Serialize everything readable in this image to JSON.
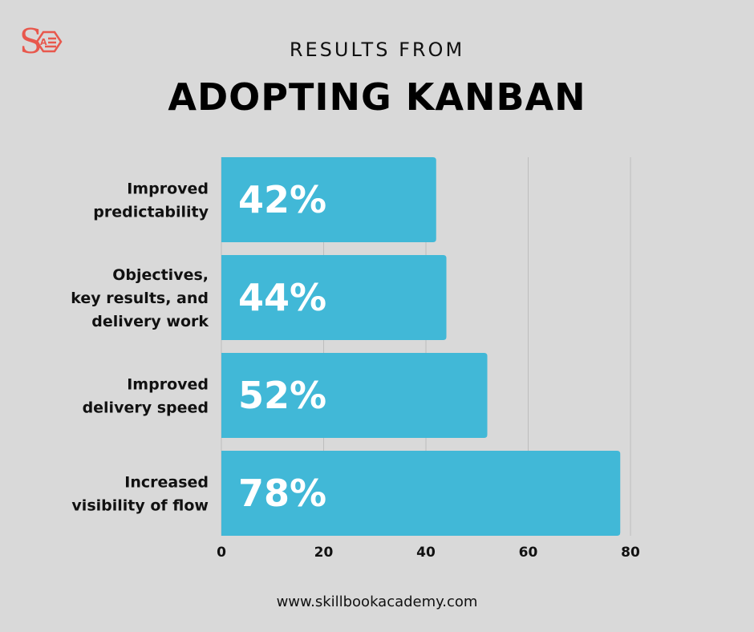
{
  "header": {
    "subtitle": "RESULTS FROM",
    "title": "ADOPTING KANBAN"
  },
  "logo": {
    "letter": "S",
    "icon": "book-document-icon",
    "color": "#e8584d"
  },
  "footer": {
    "url": "www.skillbookacademy.com"
  },
  "colors": {
    "bar": "#41b8d7",
    "background": "#d9d9d9",
    "grid": "#bdbdbd"
  },
  "chart_data": {
    "type": "bar",
    "orientation": "horizontal",
    "categories": [
      [
        "Improved",
        "predictability"
      ],
      [
        "Objectives,",
        "key results, and",
        "delivery work"
      ],
      [
        "Improved",
        "delivery speed"
      ],
      [
        "Increased",
        "visibility of flow"
      ]
    ],
    "values": [
      42,
      44,
      52,
      78
    ],
    "data_labels": [
      "42%",
      "44%",
      "52%",
      "78%"
    ],
    "xlim": [
      0,
      80
    ],
    "xticks": [
      0,
      20,
      40,
      60,
      80
    ],
    "grid": true,
    "title": "ADOPTING KANBAN"
  }
}
